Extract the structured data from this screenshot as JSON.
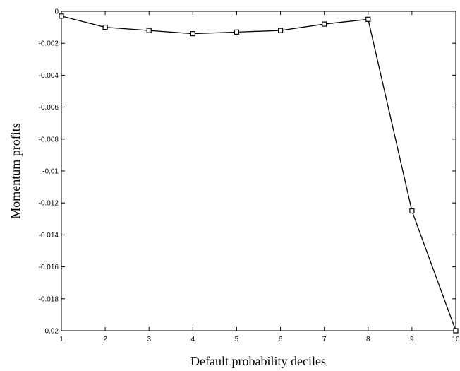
{
  "chart_data": {
    "type": "line",
    "title": "",
    "xlabel": "Default probability deciles",
    "ylabel": "Momentum profits",
    "xlim": [
      1,
      10
    ],
    "ylim": [
      -0.02,
      0
    ],
    "x_ticks": [
      1,
      2,
      3,
      4,
      5,
      6,
      7,
      8,
      9,
      10
    ],
    "x_tick_labels": [
      "1",
      "2",
      "3",
      "4",
      "5",
      "6",
      "7",
      "8",
      "9",
      "10"
    ],
    "y_ticks": [
      0,
      -0.002,
      -0.004,
      -0.006,
      -0.008,
      -0.01,
      -0.012,
      -0.014,
      -0.016,
      -0.018,
      -0.02
    ],
    "y_tick_labels": [
      "0",
      "-0.002",
      "-0.004",
      "-0.006",
      "-0.008",
      "-0.01",
      "-0.012",
      "-0.014",
      "-0.016",
      "-0.018",
      "-0.02"
    ],
    "grid": false,
    "marker": "square",
    "line_color": "#000000",
    "series": [
      {
        "x": [
          1,
          2,
          3,
          4,
          5,
          6,
          7,
          8,
          9,
          10
        ],
        "values": [
          -0.0003,
          -0.001,
          -0.0012,
          -0.0014,
          -0.0013,
          -0.0012,
          -0.0008,
          -0.0005,
          -0.0125,
          -0.02
        ]
      }
    ]
  }
}
